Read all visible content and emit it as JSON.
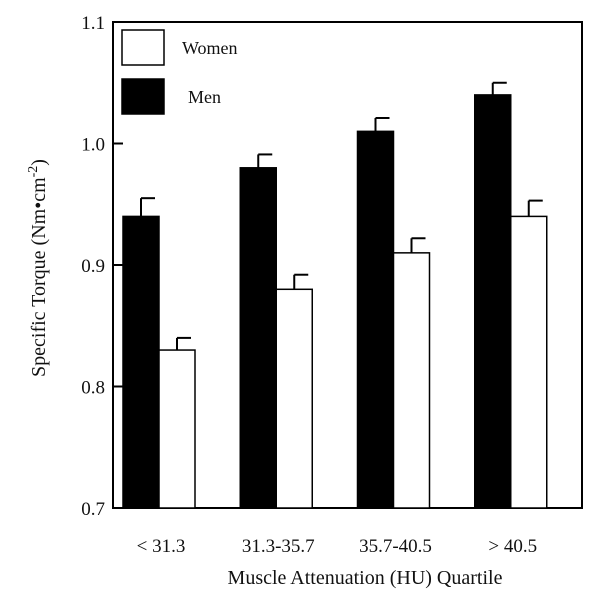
{
  "chart_data": {
    "type": "bar",
    "categories": [
      "< 31.3",
      "31.3-35.7",
      "35.7-40.5",
      "> 40.5"
    ],
    "series": [
      {
        "name": "Men",
        "values": [
          0.94,
          0.98,
          1.01,
          1.04
        ],
        "errors": [
          0.015,
          0.011,
          0.011,
          0.01
        ],
        "color": "#000000"
      },
      {
        "name": "Women",
        "values": [
          0.83,
          0.88,
          0.91,
          0.94
        ],
        "errors": [
          0.01,
          0.012,
          0.012,
          0.013
        ],
        "color": "#ffffff"
      }
    ],
    "xlabel": "Muscle Attenuation (HU) Quartile",
    "ylabel": "Specific Torque (Nm•cm",
    "ylabel_superscript": "-2",
    "ylabel_suffix": ")",
    "ylim": [
      0.7,
      1.1
    ],
    "yticks": [
      "0.7",
      "0.8",
      "0.9",
      "1.0",
      "1.1"
    ],
    "legend": {
      "position": "top-left",
      "entries": [
        {
          "label": "Women",
          "fill": "#ffffff"
        },
        {
          "label": "Men",
          "fill": "#000000"
        }
      ]
    },
    "grid": false
  }
}
